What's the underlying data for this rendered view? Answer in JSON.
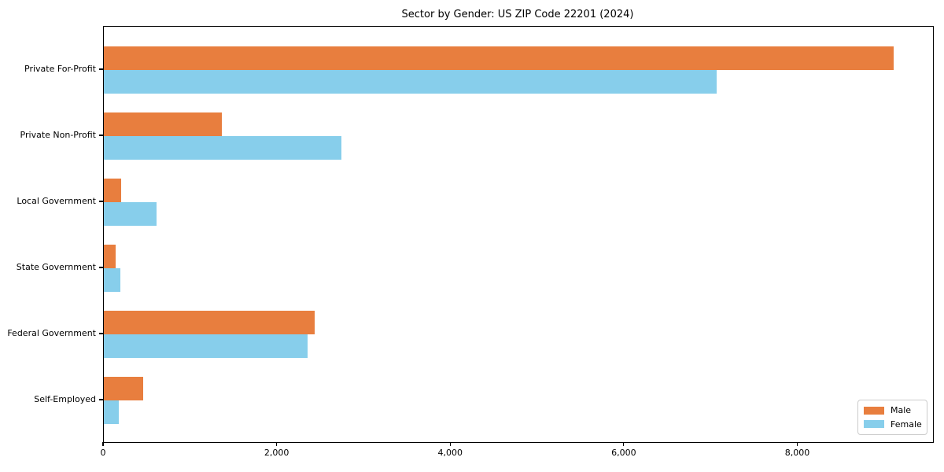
{
  "chart_data": {
    "type": "bar",
    "orientation": "horizontal",
    "title": "Sector by Gender: US ZIP Code 22201 (2024)",
    "categories": [
      "Private For-Profit",
      "Private Non-Profit",
      "Local Government",
      "State Government",
      "Federal Government",
      "Self-Employed"
    ],
    "series": [
      {
        "name": "Male",
        "color": "#e87e3e",
        "values": [
          9100,
          1360,
          200,
          140,
          2430,
          450
        ]
      },
      {
        "name": "Female",
        "color": "#87ceeb",
        "values": [
          7060,
          2740,
          610,
          190,
          2345,
          175
        ]
      }
    ],
    "xlabel": "",
    "ylabel": "",
    "xlim": [
      0,
      9555
    ],
    "xticks": [
      {
        "value": 0,
        "label": "0"
      },
      {
        "value": 2000,
        "label": "2,000"
      },
      {
        "value": 4000,
        "label": "4,000"
      },
      {
        "value": 6000,
        "label": "6,000"
      },
      {
        "value": 8000,
        "label": "8,000"
      }
    ],
    "grid": false,
    "legend_position": "lower-right"
  }
}
